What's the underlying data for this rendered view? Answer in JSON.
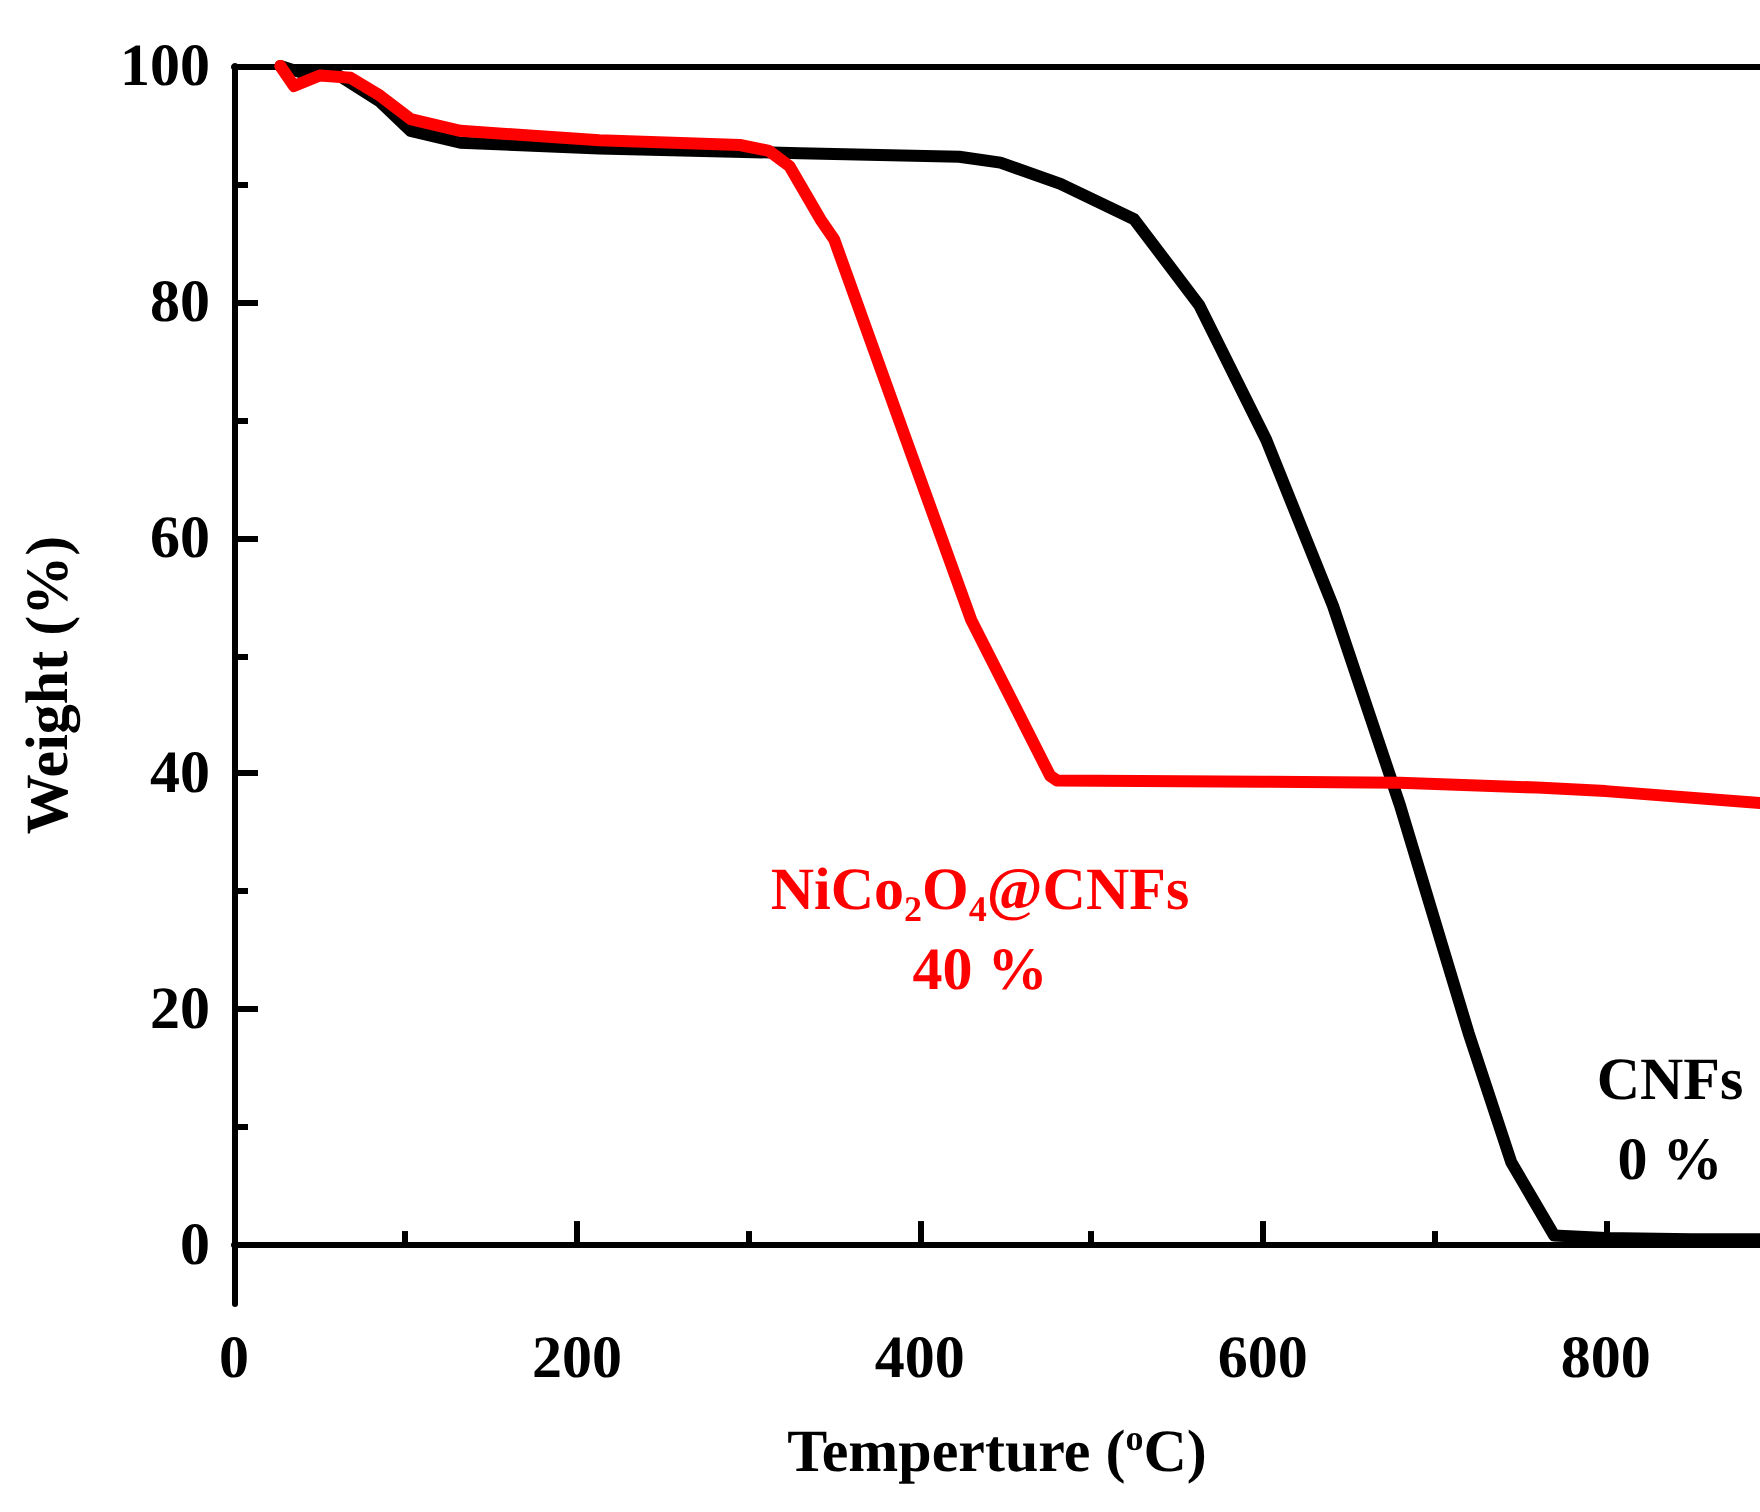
{
  "chart_data": {
    "type": "line",
    "xlabel": "Temperture ($^{o}$C)",
    "ylabel": "Weight (%)",
    "xlim": [
      0,
      890
    ],
    "xticks": [
      0,
      200,
      400,
      600,
      800
    ],
    "ylim": [
      -5,
      100
    ],
    "yticks": [
      0,
      20,
      40,
      60,
      80,
      100
    ],
    "grid": false,
    "legend": false,
    "marker": "none",
    "line_style": "solid",
    "annotations": [
      "0 %",
      "40 %"
    ],
    "series": [
      {
        "name": "CNFs",
        "color": "#000000",
        "x": [
          27,
          38,
          60,
          85,
          103,
          132,
          213,
          330,
          423,
          447,
          482,
          525,
          563,
          602,
          641,
          680,
          720,
          745,
          770,
          800,
          850,
          890
        ],
        "values": [
          100,
          99.5,
          99.3,
          97,
          94.5,
          93.5,
          93,
          92.6,
          92.3,
          91.8,
          90,
          87,
          79.7,
          68.3,
          54.2,
          37.3,
          18,
          7,
          0.8,
          0.6,
          0.5,
          0.5
        ]
      },
      {
        "name": "NiCo₂O₄@CNFs",
        "color": "#ff0000",
        "x": [
          27,
          35,
          50,
          68,
          85,
          103,
          132,
          213,
          295,
          312,
          324,
          342,
          350,
          392,
          430,
          476,
          480,
          600,
          680,
          760,
          800,
          890
        ],
        "values": [
          100,
          98.3,
          99.2,
          99,
          97.5,
          95.5,
          94.5,
          93.7,
          93.3,
          92.8,
          91.5,
          87,
          85.3,
          68.3,
          53,
          39.8,
          39.4,
          39.3,
          39.2,
          38.8,
          38.5,
          37.5
        ]
      }
    ]
  }
}
